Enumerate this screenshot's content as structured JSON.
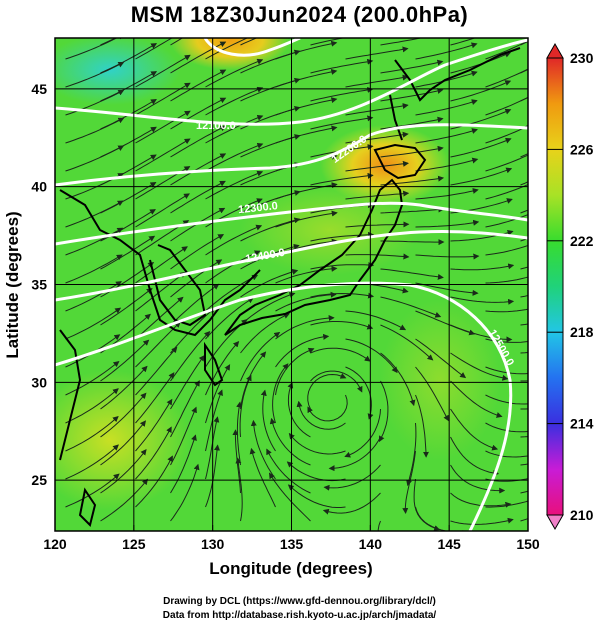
{
  "title": "MSM 18Z30Jun2024 (200.0hPa)",
  "xaxis": {
    "title": "Longitude (degrees)",
    "range": [
      120,
      150
    ],
    "ticks": [
      120,
      125,
      130,
      135,
      140,
      145,
      150
    ]
  },
  "yaxis": {
    "title": "Latitude  (degrees)",
    "range": [
      22.4,
      47.6
    ],
    "ticks": [
      25,
      30,
      35,
      40,
      45
    ]
  },
  "colorbar": {
    "min": 210,
    "max": 230,
    "labels": [
      230,
      226,
      222,
      218,
      214,
      210
    ],
    "colors": [
      "#e8107c",
      "#c81cd6",
      "#3a2fe0",
      "#2472f0",
      "#22c6e6",
      "#20d27a",
      "#38dc2e",
      "#a8e226",
      "#e8d21a",
      "#f09a10",
      "#f05a20",
      "#e02828"
    ]
  },
  "contours": [
    {
      "label": "12100.0"
    },
    {
      "label": "12200.0"
    },
    {
      "label": "12300.0"
    },
    {
      "label": "12400.0"
    },
    {
      "label": "12500.0"
    }
  ],
  "credits": {
    "line1": "Drawing by DCL (https://www.gfd-dennou.org/library/dcl/)",
    "line2": "Data from http://database.rish.kyoto-u.ac.jp/arch/jmadata/"
  }
}
